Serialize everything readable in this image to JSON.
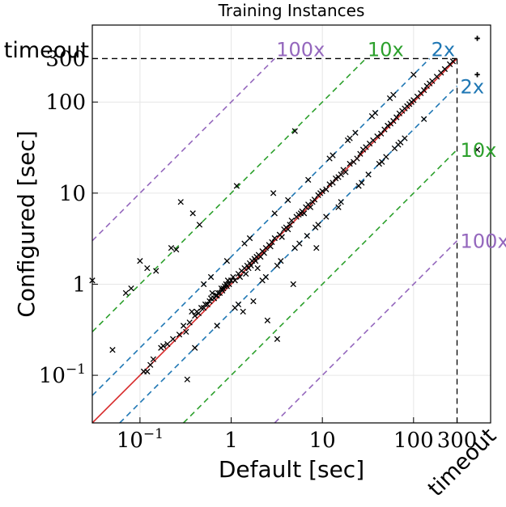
{
  "chart_data": {
    "type": "scatter",
    "title": "Training Instances",
    "xlabel": "Default [sec]",
    "ylabel": "Configured [sec]",
    "xscale": "log",
    "yscale": "log",
    "xlim": [
      0.03,
      700
    ],
    "ylim": [
      0.03,
      700
    ],
    "cutoff": 300,
    "timeout_label": "timeout",
    "x_ticks": [
      {
        "value": 0.1,
        "base": "10",
        "exp": "−1"
      },
      {
        "value": 1,
        "base": "1",
        "exp": ""
      },
      {
        "value": 10,
        "base": "10",
        "exp": ""
      },
      {
        "value": 100,
        "base": "100",
        "exp": ""
      },
      {
        "value": 300,
        "base": "300",
        "exp": ""
      }
    ],
    "y_ticks": [
      {
        "value": 0.1,
        "base": "10",
        "exp": "−1"
      },
      {
        "value": 1,
        "base": "1",
        "exp": ""
      },
      {
        "value": 10,
        "base": "10",
        "exp": ""
      },
      {
        "value": 100,
        "base": "100",
        "exp": ""
      },
      {
        "value": 300,
        "base": "300",
        "exp": ""
      }
    ],
    "grid": true,
    "colors": {
      "diagonal": "#d62728",
      "2x": "#1f77b4",
      "10x": "#2ca02c",
      "100x": "#9467bd",
      "points": "#000000"
    },
    "ratio_lines": [
      {
        "factor": 2,
        "label": "2x",
        "color": "#1f77b4"
      },
      {
        "factor": 10,
        "label": "10x",
        "color": "#2ca02c"
      },
      {
        "factor": 100,
        "label": "100x",
        "color": "#9467bd"
      }
    ],
    "points": [
      [
        0.03,
        1.1
      ],
      [
        0.05,
        0.19
      ],
      [
        0.07,
        0.8
      ],
      [
        0.08,
        0.9
      ],
      [
        0.1,
        1.8
      ],
      [
        0.11,
        0.11
      ],
      [
        0.12,
        0.11
      ],
      [
        0.13,
        0.13
      ],
      [
        0.14,
        0.15
      ],
      [
        0.15,
        1.4
      ],
      [
        0.17,
        0.2
      ],
      [
        0.18,
        0.21
      ],
      [
        0.2,
        0.22
      ],
      [
        0.23,
        0.25
      ],
      [
        0.25,
        2.4
      ],
      [
        0.27,
        0.28
      ],
      [
        0.28,
        8
      ],
      [
        0.3,
        0.35
      ],
      [
        0.32,
        0.3
      ],
      [
        0.33,
        0.09
      ],
      [
        0.35,
        0.38
      ],
      [
        0.37,
        0.5
      ],
      [
        0.38,
        6
      ],
      [
        0.4,
        0.45
      ],
      [
        0.42,
        0.5
      ],
      [
        0.44,
        0.48
      ],
      [
        0.45,
        4.5
      ],
      [
        0.47,
        0.55
      ],
      [
        0.5,
        0.55
      ],
      [
        0.52,
        0.6
      ],
      [
        0.55,
        0.6
      ],
      [
        0.58,
        0.65
      ],
      [
        0.6,
        0.7
      ],
      [
        0.62,
        0.8
      ],
      [
        0.65,
        0.7
      ],
      [
        0.68,
        0.75
      ],
      [
        0.7,
        0.75
      ],
      [
        0.72,
        0.8
      ],
      [
        0.75,
        0.8
      ],
      [
        0.78,
        0.9
      ],
      [
        0.8,
        0.85
      ],
      [
        0.82,
        0.9
      ],
      [
        0.85,
        0.95
      ],
      [
        0.88,
        1
      ],
      [
        0.9,
        0.95
      ],
      [
        0.92,
        1.1
      ],
      [
        0.95,
        1
      ],
      [
        1,
        1.1
      ],
      [
        1.05,
        1.2
      ],
      [
        1.1,
        1.1
      ],
      [
        1.15,
        12
      ],
      [
        1.2,
        1.3
      ],
      [
        1.25,
        1.2
      ],
      [
        1.3,
        1.4
      ],
      [
        1.35,
        0.5
      ],
      [
        1.4,
        1.5
      ],
      [
        1.45,
        1.3
      ],
      [
        1.5,
        1.6
      ],
      [
        1.55,
        1.5
      ],
      [
        1.6,
        1.7
      ],
      [
        1.65,
        1.6
      ],
      [
        1.7,
        1.8
      ],
      [
        1.75,
        0.65
      ],
      [
        1.8,
        1.9
      ],
      [
        1.85,
        1.8
      ],
      [
        1.9,
        2
      ],
      [
        1.95,
        1.5
      ],
      [
        2,
        2.1
      ],
      [
        2.1,
        2
      ],
      [
        2.2,
        2.3
      ],
      [
        2.3,
        2.2
      ],
      [
        2.4,
        2.5
      ],
      [
        2.5,
        0.4
      ],
      [
        2.6,
        2.7
      ],
      [
        2.7,
        2.6
      ],
      [
        2.8,
        2.9
      ],
      [
        2.9,
        10
      ],
      [
        3,
        3.2
      ],
      [
        3.2,
        0.25
      ],
      [
        3.4,
        3.5
      ],
      [
        3.6,
        3.3
      ],
      [
        3.8,
        4
      ],
      [
        4,
        4.2
      ],
      [
        4.2,
        4
      ],
      [
        4.4,
        4.5
      ],
      [
        4.6,
        5
      ],
      [
        4.8,
        1
      ],
      [
        5,
        48
      ],
      [
        5.2,
        5.5
      ],
      [
        5.5,
        5.8
      ],
      [
        5.8,
        6
      ],
      [
        6,
        6.3
      ],
      [
        6.3,
        6
      ],
      [
        6.6,
        7
      ],
      [
        7,
        7.5
      ],
      [
        7.4,
        7
      ],
      [
        7.8,
        8
      ],
      [
        8.2,
        8.5
      ],
      [
        8.6,
        2.5
      ],
      [
        9,
        9.5
      ],
      [
        9.5,
        10
      ],
      [
        10,
        10.5
      ],
      [
        11,
        11
      ],
      [
        12,
        12.5
      ],
      [
        13,
        13
      ],
      [
        14,
        14.5
      ],
      [
        15,
        15
      ],
      [
        16,
        16
      ],
      [
        17,
        18
      ],
      [
        18,
        17
      ],
      [
        20,
        21
      ],
      [
        22,
        22
      ],
      [
        24,
        24
      ],
      [
        26,
        27
      ],
      [
        28,
        30
      ],
      [
        30,
        32
      ],
      [
        33,
        35
      ],
      [
        36,
        38
      ],
      [
        40,
        42
      ],
      [
        44,
        45
      ],
      [
        48,
        50
      ],
      [
        52,
        55
      ],
      [
        56,
        58
      ],
      [
        60,
        62
      ],
      [
        65,
        68
      ],
      [
        70,
        75
      ],
      [
        75,
        80
      ],
      [
        80,
        85
      ],
      [
        85,
        90
      ],
      [
        90,
        95
      ],
      [
        95,
        100
      ],
      [
        100,
        105
      ],
      [
        110,
        115
      ],
      [
        120,
        125
      ],
      [
        130,
        135
      ],
      [
        140,
        150
      ],
      [
        150,
        160
      ],
      [
        160,
        170
      ],
      [
        180,
        190
      ],
      [
        200,
        210
      ],
      [
        220,
        230
      ],
      [
        250,
        260
      ],
      [
        270,
        280
      ],
      [
        0.12,
        1.5
      ],
      [
        0.22,
        2.5
      ],
      [
        0.6,
        1.2
      ],
      [
        1.1,
        0.55
      ],
      [
        1.4,
        2.8
      ],
      [
        2.2,
        1.1
      ],
      [
        3,
        6
      ],
      [
        3.5,
        1.8
      ],
      [
        5,
        2.5
      ],
      [
        7,
        14
      ],
      [
        9,
        4.5
      ],
      [
        12,
        24
      ],
      [
        15,
        7
      ],
      [
        20,
        40
      ],
      [
        25,
        12
      ],
      [
        35,
        70
      ],
      [
        45,
        22
      ],
      [
        60,
        120
      ],
      [
        80,
        40
      ],
      [
        100,
        200
      ],
      [
        130,
        65
      ],
      [
        0.4,
        0.2
      ],
      [
        0.5,
        1
      ],
      [
        0.7,
        0.35
      ],
      [
        0.9,
        1.8
      ],
      [
        1.2,
        0.6
      ],
      [
        1.6,
        3.2
      ],
      [
        2.4,
        1.2
      ],
      [
        3.2,
        1.6
      ],
      [
        4.2,
        8.4
      ],
      [
        5.6,
        2.8
      ],
      [
        6.8,
        3.4
      ],
      [
        8.4,
        4.2
      ],
      [
        11,
        5.5
      ],
      [
        13,
        26
      ],
      [
        16,
        8
      ],
      [
        19,
        38
      ],
      [
        23,
        46
      ],
      [
        27,
        13
      ],
      [
        32,
        16
      ],
      [
        38,
        76
      ],
      [
        42,
        21
      ],
      [
        50,
        25
      ],
      [
        55,
        110
      ],
      [
        62,
        31
      ],
      [
        68,
        34
      ],
      [
        72,
        36
      ],
      [
        500,
        30
      ]
    ],
    "timeout_points": [
      [
        500,
        500
      ],
      [
        500,
        200
      ]
    ]
  }
}
